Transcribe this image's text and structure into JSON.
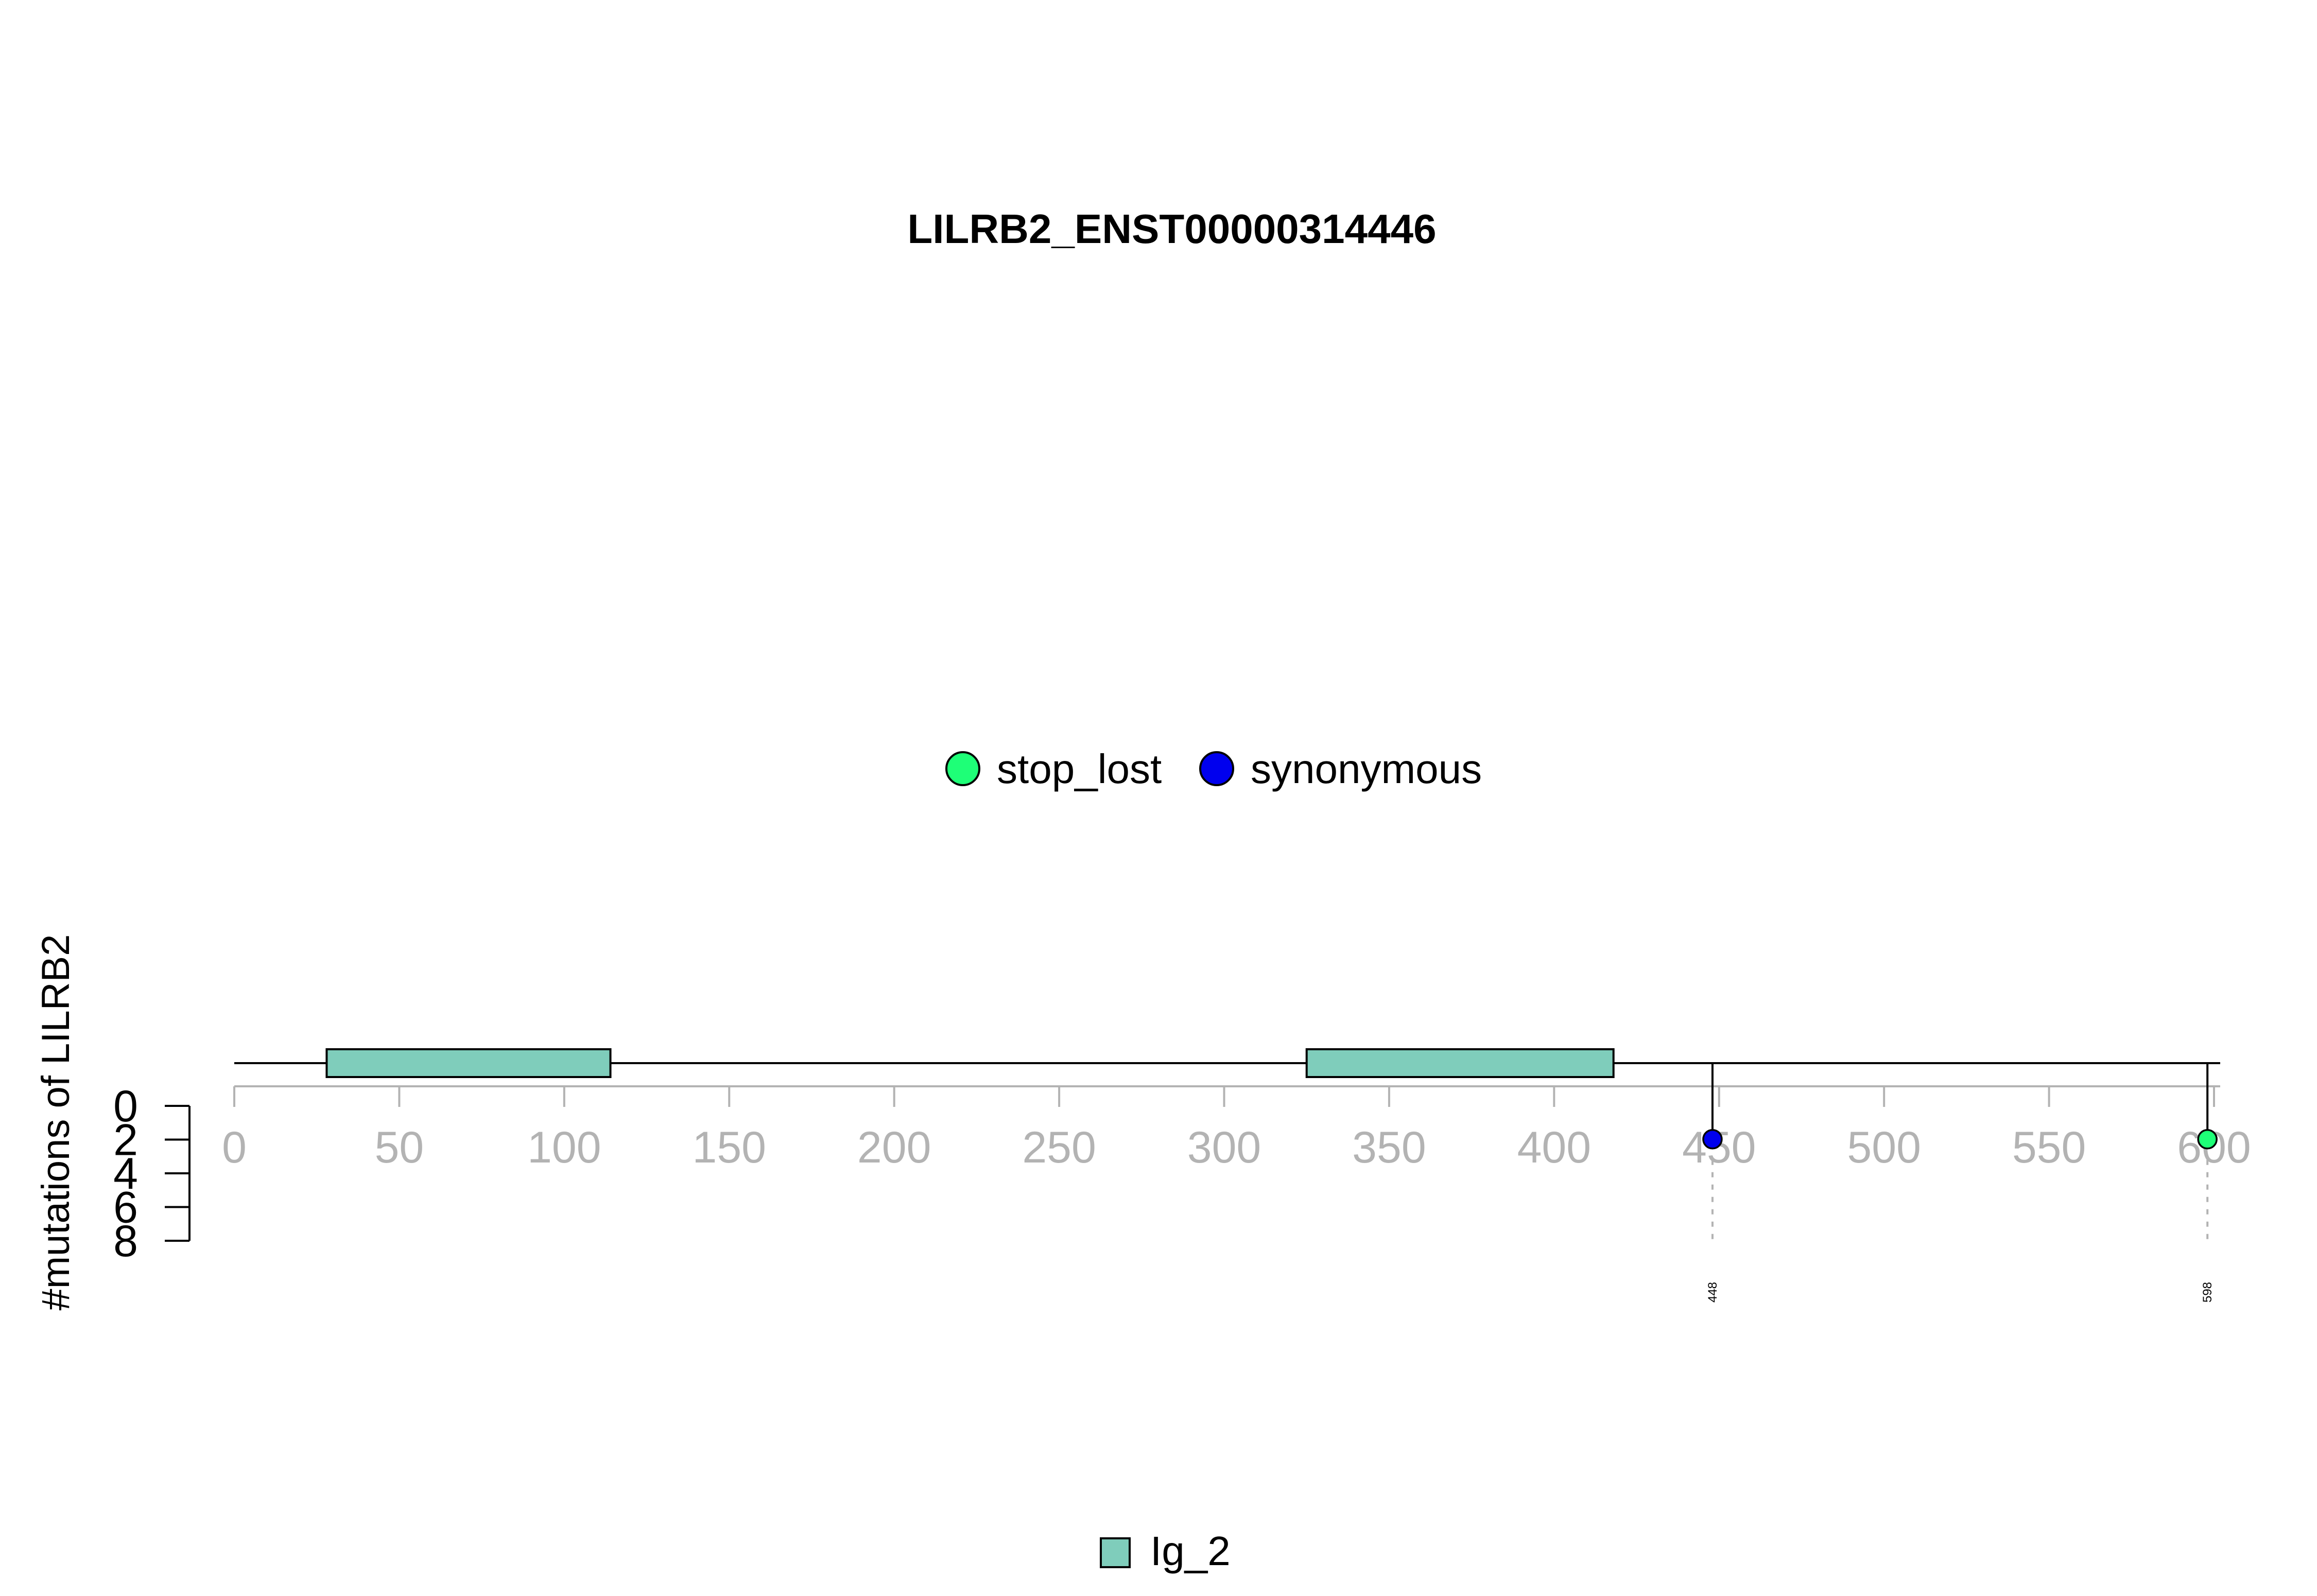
{
  "chart_data": {
    "type": "lollipop",
    "title": "LILRB2_ENST00000314446",
    "ylabel": "#mutations of LILRB2",
    "protein_length": 600,
    "xlim": [
      0,
      600
    ],
    "x_ticks": [
      0,
      50,
      100,
      150,
      200,
      250,
      300,
      350,
      400,
      450,
      500,
      550,
      600
    ],
    "y_ticks": [
      0,
      2,
      4,
      6,
      8
    ],
    "ylim": [
      0,
      8
    ],
    "domains": [
      {
        "name": "Ig_2",
        "start": 28,
        "end": 114,
        "color": "#7fcdbb"
      },
      {
        "name": "Ig_2",
        "start": 325,
        "end": 418,
        "color": "#7fcdbb"
      }
    ],
    "mutations": [
      {
        "position": 448,
        "count": 1,
        "type": "synonymous",
        "label": "448"
      },
      {
        "position": 598,
        "count": 1,
        "type": "stop_lost",
        "label": "598"
      }
    ],
    "mutation_legend": [
      {
        "name": "stop_lost",
        "color": "#1eff77"
      },
      {
        "name": "synonymous",
        "color": "#0000ee"
      }
    ],
    "domain_legend": [
      {
        "name": "Ig_2",
        "color": "#7fcdbb"
      }
    ],
    "grid": false
  }
}
